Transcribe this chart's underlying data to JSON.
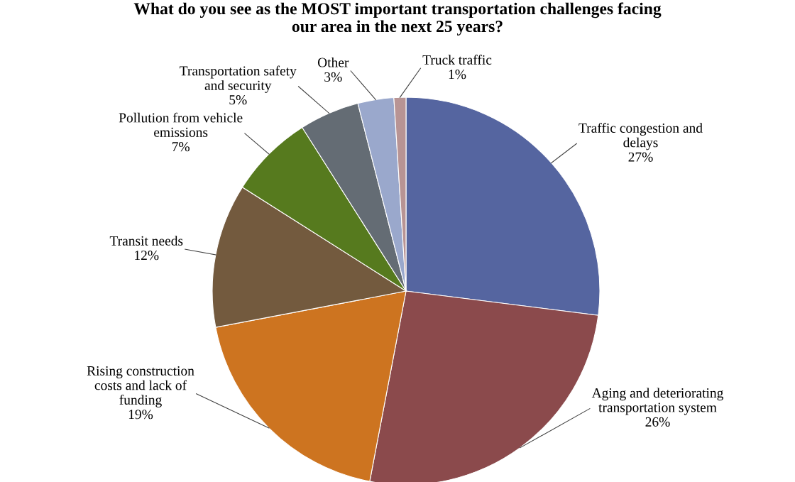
{
  "chart_data": {
    "type": "pie",
    "title": "What do you see as the MOST important transportation challenges facing\nour area in the next 25 years?",
    "categories": [
      "Traffic congestion and\ndelays",
      "Aging and deteriorating\ntransportation system",
      "Rising construction\ncosts and lack of\nfunding",
      "Transit needs",
      "Pollution from vehicle\nemissions",
      "Transportation safety\nand security",
      "Other",
      "Truck traffic"
    ],
    "values": [
      27,
      26,
      19,
      12,
      7,
      5,
      3,
      1
    ],
    "value_labels": [
      "27%",
      "26%",
      "19%",
      "12%",
      "7%",
      "5%",
      "3%",
      "1%"
    ],
    "colors": [
      "#5565a0",
      "#8b4a4c",
      "#cd7420",
      "#735a3e",
      "#567a1e",
      "#646c74",
      "#9aa8cc",
      "#b89494"
    ]
  }
}
